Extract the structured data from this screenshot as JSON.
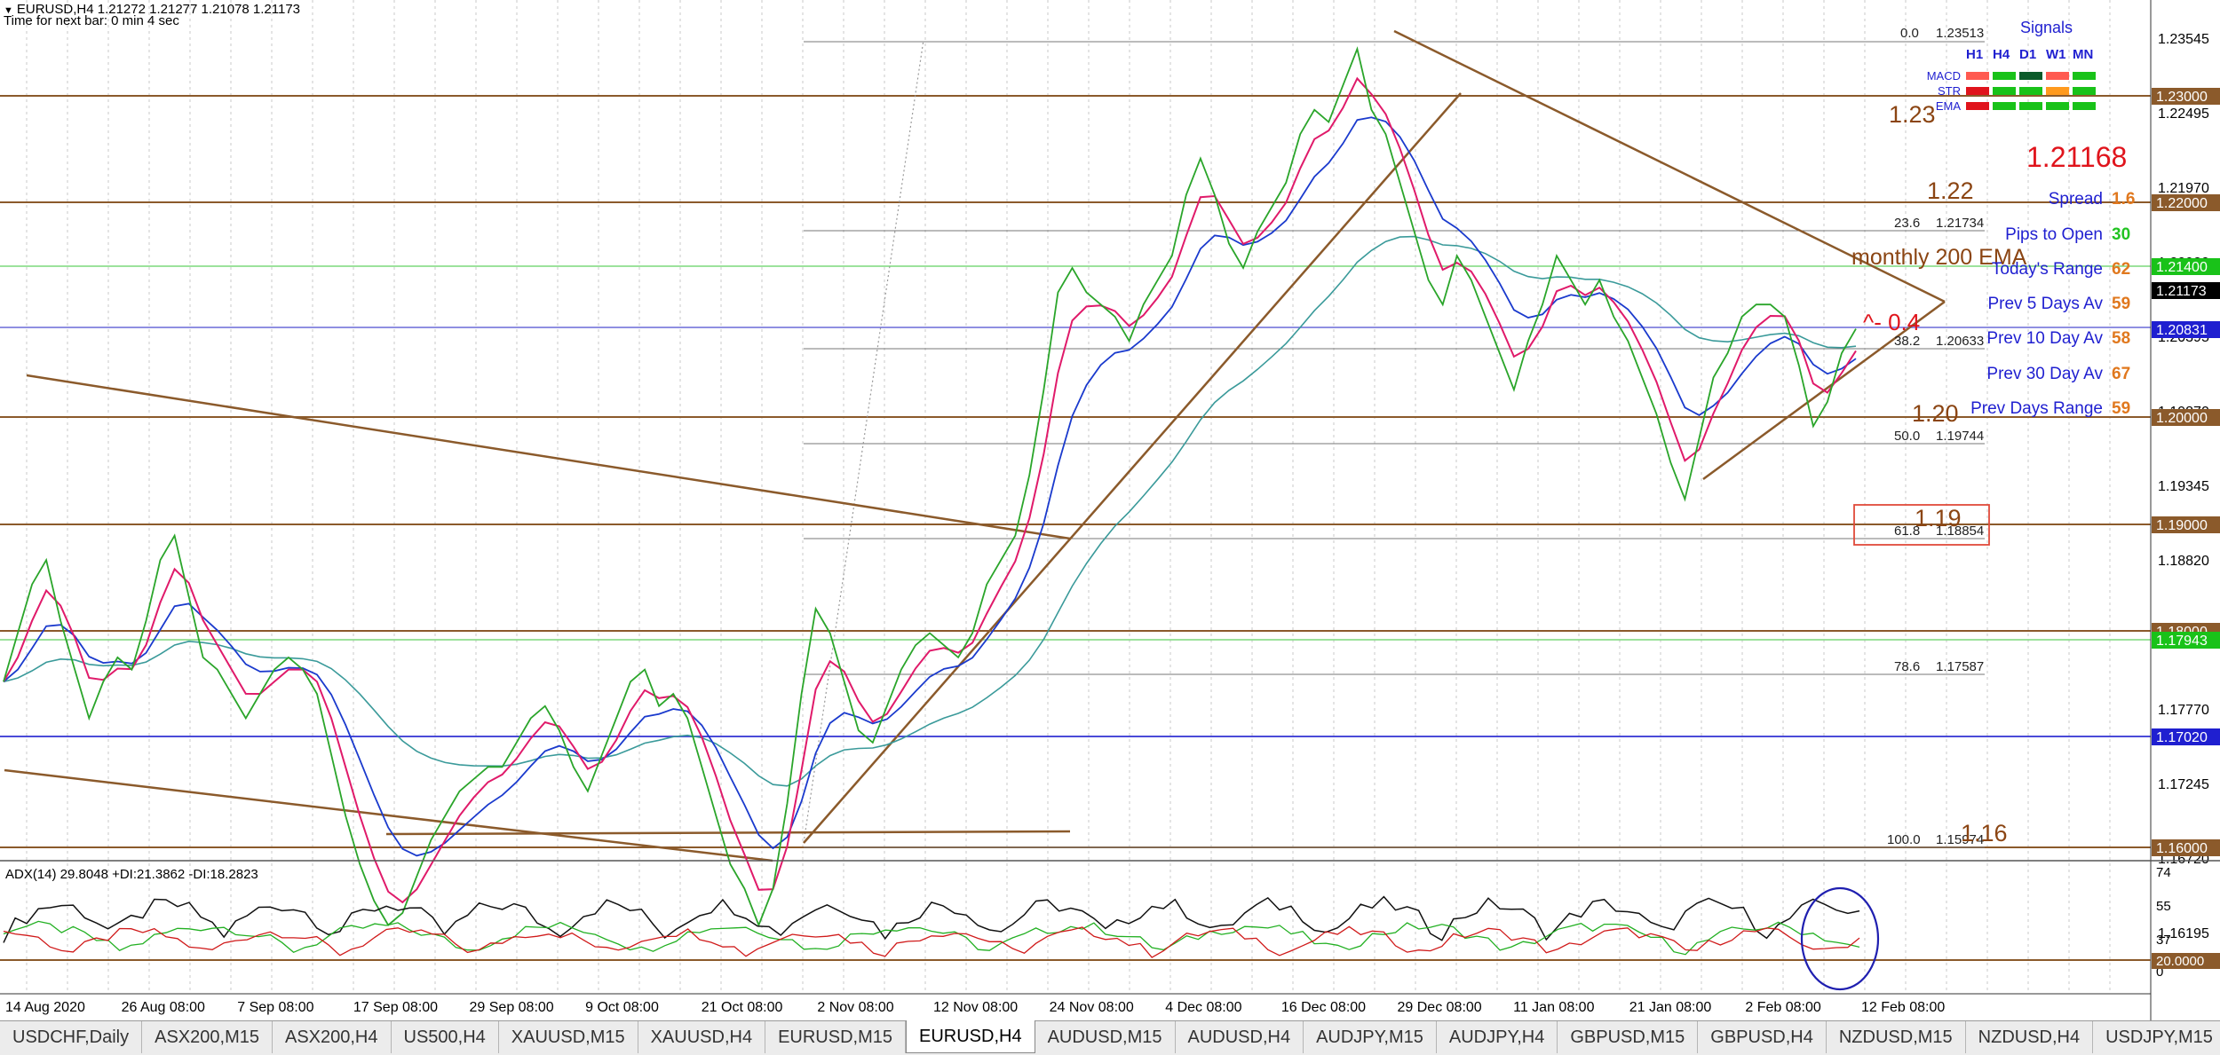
{
  "header": {
    "symbol_line": "EURUSD,H4  1.21272 1.21277 1.21078 1.21173",
    "next_bar": "Time for next bar: 0 min 4 sec"
  },
  "colors": {
    "level_line": "#8b5a2b",
    "price_label_brown": "#8b4513",
    "label_blue": "#1f1fd0",
    "label_green_bg": "#19c219",
    "red_text": "#e0141c",
    "orange_value": "#e0781e",
    "green_value": "#22c322",
    "macd_red": "#ff5a50",
    "ema_dark": "#0b5a2a"
  },
  "price_axis": {
    "ticks": [
      "1.23545",
      "1.22495",
      "1.21970",
      "1.20920",
      "1.20395",
      "1.19870",
      "1.19345",
      "1.18820",
      "1.18295",
      "1.17770",
      "1.17245",
      "1.16720",
      "1.16195"
    ]
  },
  "level_labels": {
    "l1_23": "1.23000",
    "l1_22": "1.22000",
    "l1_214": "1.21400",
    "current": "1.21173",
    "l1_2083": "1.20831",
    "l1_20": "1.20000",
    "l1_19": "1.19000",
    "l1_18": "1.18000",
    "l1_1794": "1.17943",
    "l1_1702": "1.17020",
    "l1_16": "1.16000"
  },
  "fib_labels": [
    {
      "pct": "0.0",
      "price": "1.23513"
    },
    {
      "pct": "23.6",
      "price": "1.21734"
    },
    {
      "pct": "38.2",
      "price": "1.20633"
    },
    {
      "pct": "50.0",
      "price": "1.19744"
    },
    {
      "pct": "61.8",
      "price": "1.18854"
    },
    {
      "pct": "78.6",
      "price": "1.17587"
    },
    {
      "pct": "100.0",
      "price": "1.15974"
    }
  ],
  "annotations": {
    "big_1_23": "1.23",
    "big_1_22": "1.22",
    "big_1_20": "1.20",
    "big_1_19": "1.19",
    "big_1_16": "1.16",
    "monthly_ema": "monthly 200 EMA",
    "caret_note": "^- 0.4",
    "bid_big": "1.21168"
  },
  "signals": {
    "title": "Signals",
    "timeframes": [
      "H1",
      "H4",
      "D1",
      "W1",
      "MN"
    ],
    "rows": [
      {
        "label": "MACD",
        "colors": [
          "#ff5a50",
          "#19c219",
          "#0b5a2a",
          "#ff5a50",
          "#19c219"
        ]
      },
      {
        "label": "STR",
        "colors": [
          "#e0141c",
          "#19c219",
          "#19c219",
          "#ff9a1e",
          "#19c219"
        ]
      },
      {
        "label": "EMA",
        "colors": [
          "#e0141c",
          "#19c219",
          "#19c219",
          "#19c219",
          "#19c219"
        ]
      }
    ]
  },
  "stats": [
    {
      "label": "Spread",
      "value": "1.6",
      "value_color": "#e0781e"
    },
    {
      "label": "Pips to Open",
      "value": "30",
      "value_color": "#22c322"
    },
    {
      "label": "Today's Range",
      "value": "62",
      "value_color": "#e0781e"
    },
    {
      "label": "Prev 5 Days Av",
      "value": "59",
      "value_color": "#e0781e"
    },
    {
      "label": "Prev 10 Day Av",
      "value": "58",
      "value_color": "#e0781e"
    },
    {
      "label": "Prev 30 Day Av",
      "value": "67",
      "value_color": "#e0781e"
    },
    {
      "label": "Prev Days Range",
      "value": "59",
      "value_color": "#e0781e"
    }
  ],
  "adx": {
    "label": "ADX(14) 29.8048 +DI:21.3862 -DI:18.2823",
    "axis_ticks": [
      "74",
      "55",
      "37",
      "20.0000",
      "0"
    ],
    "level_label": "20.0000",
    "level_value": 20
  },
  "time_axis": [
    "14 Aug 2020",
    "26 Aug 08:00",
    "7 Sep 08:00",
    "17 Sep 08:00",
    "29 Sep 08:00",
    "9 Oct 08:00",
    "21 Oct 08:00",
    "2 Nov 08:00",
    "12 Nov 08:00",
    "24 Nov 08:00",
    "4 Dec 08:00",
    "16 Dec 08:00",
    "29 Dec 08:00",
    "11 Jan 08:00",
    "21 Jan 08:00",
    "2 Feb 08:00",
    "12 Feb 08:00"
  ],
  "tabs": [
    {
      "label": "USDCHF,Daily",
      "active": false
    },
    {
      "label": "ASX200,M15",
      "active": false
    },
    {
      "label": "ASX200,H4",
      "active": false
    },
    {
      "label": "US500,H4",
      "active": false
    },
    {
      "label": "XAUUSD,M15",
      "active": false
    },
    {
      "label": "XAUUSD,H4",
      "active": false
    },
    {
      "label": "EURUSD,M15",
      "active": false
    },
    {
      "label": "EURUSD,H4",
      "active": true
    },
    {
      "label": "AUDUSD,M15",
      "active": false
    },
    {
      "label": "AUDUSD,H4",
      "active": false
    },
    {
      "label": "AUDJPY,M15",
      "active": false
    },
    {
      "label": "AUDJPY,H4",
      "active": false
    },
    {
      "label": "GBPUSD,M15",
      "active": false
    },
    {
      "label": "GBPUSD,H4",
      "active": false
    },
    {
      "label": "NZDUSD,M15",
      "active": false
    },
    {
      "label": "NZDUSD,H4",
      "active": false
    },
    {
      "label": "USDJPY,M15",
      "active": false
    }
  ],
  "price_series": [
    1.183,
    1.187,
    1.191,
    1.193,
    1.188,
    1.184,
    1.18,
    1.183,
    1.185,
    1.184,
    1.188,
    1.193,
    1.195,
    1.19,
    1.185,
    1.184,
    1.182,
    1.18,
    1.182,
    1.184,
    1.185,
    1.184,
    1.182,
    1.177,
    1.172,
    1.168,
    1.165,
    1.163,
    1.164,
    1.167,
    1.17,
    1.172,
    1.174,
    1.175,
    1.176,
    1.176,
    1.178,
    1.18,
    1.181,
    1.179,
    1.176,
    1.174,
    1.177,
    1.18,
    1.183,
    1.184,
    1.181,
    1.182,
    1.18,
    1.176,
    1.172,
    1.168,
    1.166,
    1.163,
    1.166,
    1.173,
    1.182,
    1.189,
    1.187,
    1.183,
    1.179,
    1.178,
    1.181,
    1.184,
    1.186,
    1.187,
    1.186,
    1.185,
    1.187,
    1.191,
    1.193,
    1.195,
    1.2,
    1.207,
    1.215,
    1.217,
    1.215,
    1.214,
    1.213,
    1.211,
    1.214,
    1.216,
    1.218,
    1.223,
    1.226,
    1.223,
    1.219,
    1.217,
    1.22,
    1.222,
    1.224,
    1.228,
    1.23,
    1.229,
    1.232,
    1.235,
    1.23,
    1.228,
    1.224,
    1.22,
    1.216,
    1.214,
    1.218,
    1.216,
    1.213,
    1.21,
    1.207,
    1.211,
    1.214,
    1.218,
    1.216,
    1.214,
    1.216,
    1.213,
    1.211,
    1.208,
    1.205,
    1.201,
    1.198,
    1.203,
    1.208,
    1.21,
    1.213,
    1.214,
    1.214,
    1.213,
    1.209,
    1.204,
    1.206,
    1.21,
    1.212
  ]
}
